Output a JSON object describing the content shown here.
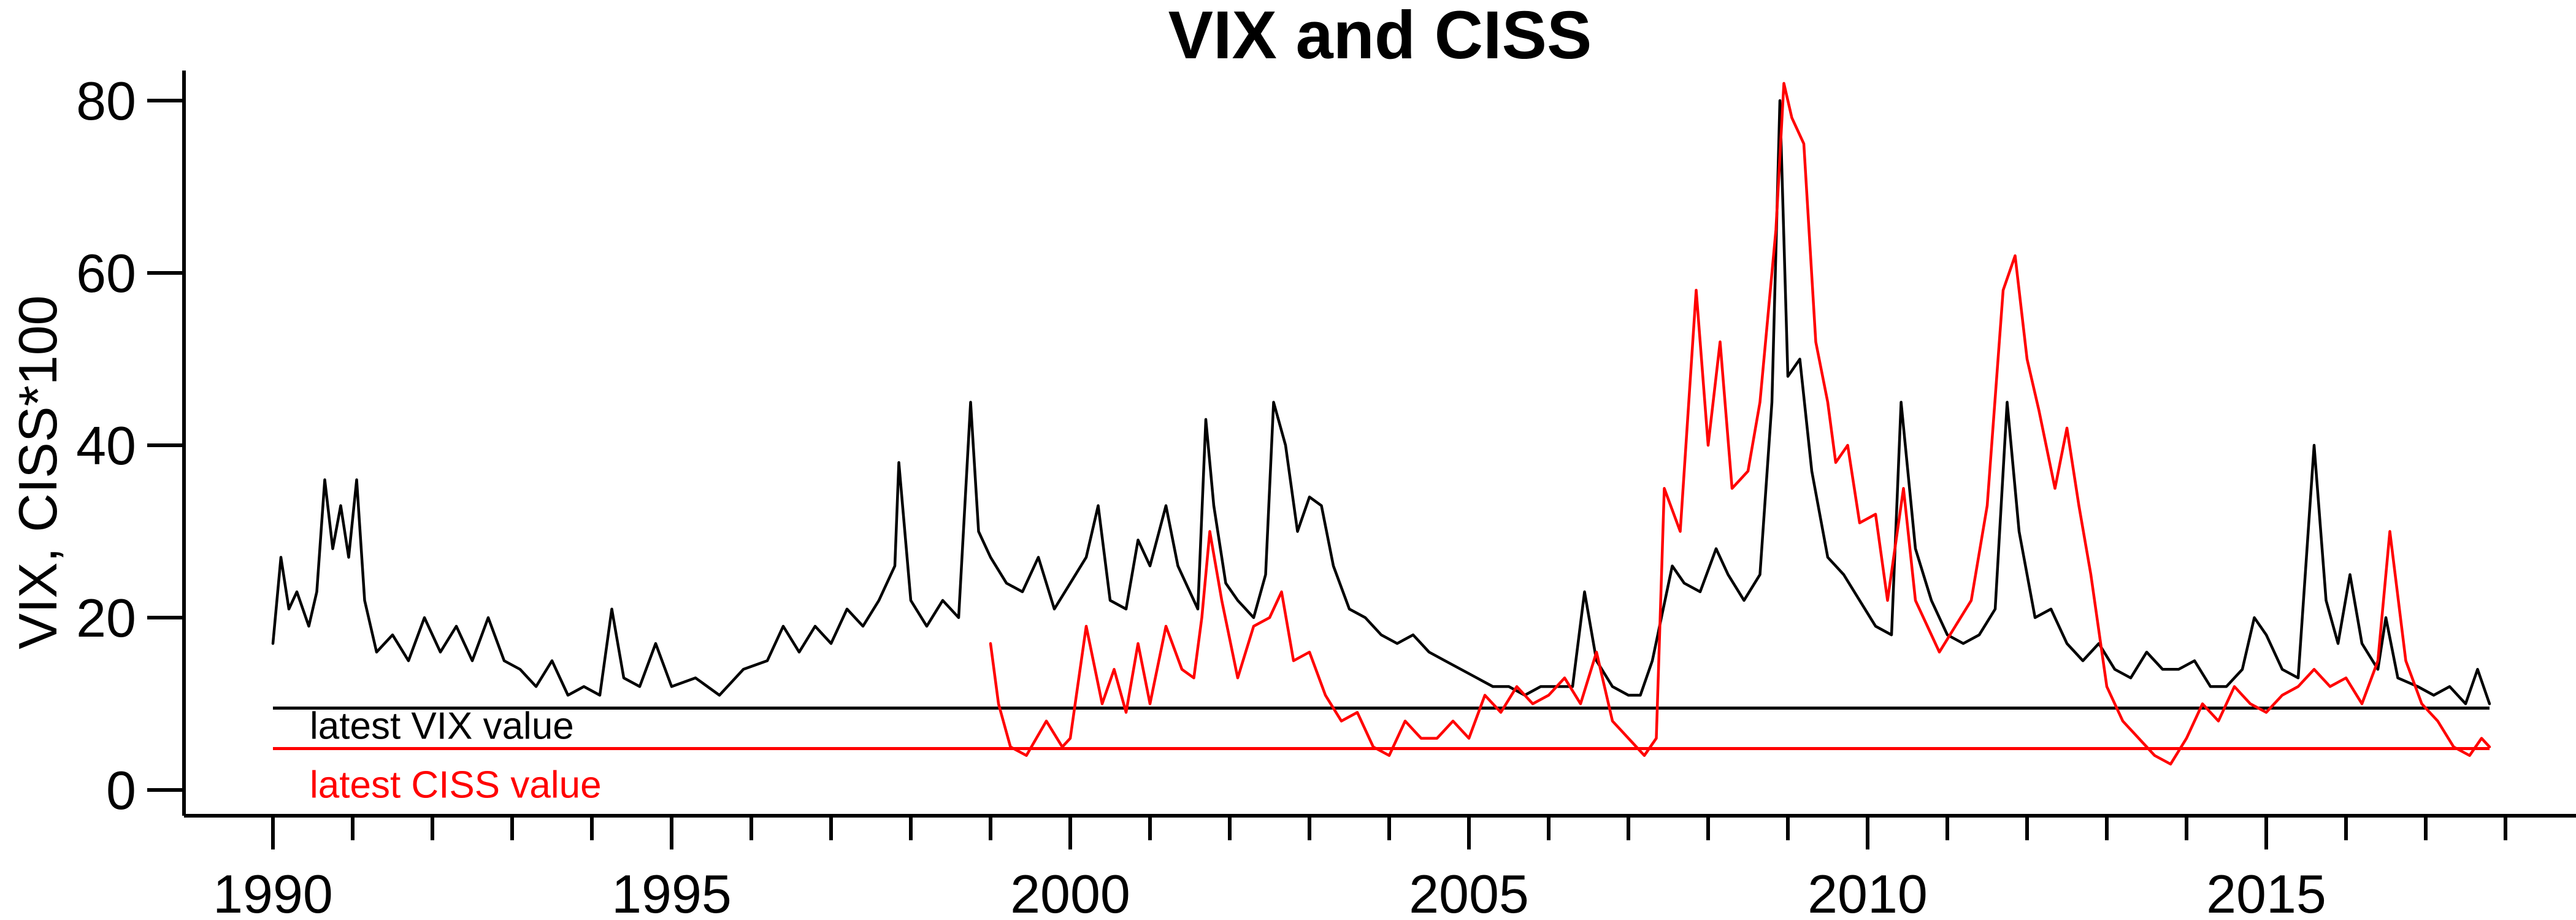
{
  "chart_data": {
    "type": "line",
    "title": "VIX and CISS",
    "xlabel": "",
    "ylabel": "VIX, CISS*100",
    "xlim": [
      1990,
      2019.5
    ],
    "ylim": [
      0,
      83
    ],
    "x_ticks": [
      1990,
      1995,
      2000,
      2005,
      2010,
      2015
    ],
    "x_minor_ticks": [
      1991,
      1992,
      1993,
      1994,
      1996,
      1997,
      1998,
      1999,
      2001,
      2002,
      2003,
      2004,
      2006,
      2007,
      2008,
      2009,
      2011,
      2012,
      2013,
      2014,
      2016,
      2017,
      2018,
      2019
    ],
    "y_ticks": [
      0,
      20,
      40,
      60,
      80
    ],
    "grid": false,
    "legend": "none",
    "series": [
      {
        "key": "vix",
        "color": "#000000",
        "points": [
          [
            1990.0,
            17
          ],
          [
            1990.1,
            27
          ],
          [
            1990.2,
            21
          ],
          [
            1990.3,
            23
          ],
          [
            1990.45,
            19
          ],
          [
            1990.55,
            23
          ],
          [
            1990.65,
            36
          ],
          [
            1990.75,
            28
          ],
          [
            1990.85,
            33
          ],
          [
            1990.95,
            27
          ],
          [
            1991.05,
            36
          ],
          [
            1991.15,
            22
          ],
          [
            1991.3,
            16
          ],
          [
            1991.5,
            18
          ],
          [
            1991.7,
            15
          ],
          [
            1991.9,
            20
          ],
          [
            1992.1,
            16
          ],
          [
            1992.3,
            19
          ],
          [
            1992.5,
            15
          ],
          [
            1992.7,
            20
          ],
          [
            1992.9,
            15
          ],
          [
            1993.1,
            14
          ],
          [
            1993.3,
            12
          ],
          [
            1993.5,
            15
          ],
          [
            1993.7,
            11
          ],
          [
            1993.9,
            12
          ],
          [
            1994.1,
            11
          ],
          [
            1994.25,
            21
          ],
          [
            1994.4,
            13
          ],
          [
            1994.6,
            12
          ],
          [
            1994.8,
            17
          ],
          [
            1995.0,
            12
          ],
          [
            1995.3,
            13
          ],
          [
            1995.6,
            11
          ],
          [
            1995.9,
            14
          ],
          [
            1996.2,
            15
          ],
          [
            1996.4,
            19
          ],
          [
            1996.6,
            16
          ],
          [
            1996.8,
            19
          ],
          [
            1997.0,
            17
          ],
          [
            1997.2,
            21
          ],
          [
            1997.4,
            19
          ],
          [
            1997.6,
            22
          ],
          [
            1997.8,
            26
          ],
          [
            1997.85,
            38
          ],
          [
            1998.0,
            22
          ],
          [
            1998.2,
            19
          ],
          [
            1998.4,
            22
          ],
          [
            1998.6,
            20
          ],
          [
            1998.75,
            45
          ],
          [
            1998.85,
            30
          ],
          [
            1999.0,
            27
          ],
          [
            1999.2,
            24
          ],
          [
            1999.4,
            23
          ],
          [
            1999.6,
            27
          ],
          [
            1999.8,
            21
          ],
          [
            2000.0,
            24
          ],
          [
            2000.2,
            27
          ],
          [
            2000.35,
            33
          ],
          [
            2000.5,
            22
          ],
          [
            2000.7,
            21
          ],
          [
            2000.85,
            29
          ],
          [
            2001.0,
            26
          ],
          [
            2001.2,
            33
          ],
          [
            2001.35,
            26
          ],
          [
            2001.5,
            23
          ],
          [
            2001.6,
            21
          ],
          [
            2001.7,
            43
          ],
          [
            2001.8,
            33
          ],
          [
            2001.95,
            24
          ],
          [
            2002.1,
            22
          ],
          [
            2002.3,
            20
          ],
          [
            2002.45,
            25
          ],
          [
            2002.55,
            45
          ],
          [
            2002.7,
            40
          ],
          [
            2002.85,
            30
          ],
          [
            2003.0,
            34
          ],
          [
            2003.15,
            33
          ],
          [
            2003.3,
            26
          ],
          [
            2003.5,
            21
          ],
          [
            2003.7,
            20
          ],
          [
            2003.9,
            18
          ],
          [
            2004.1,
            17
          ],
          [
            2004.3,
            18
          ],
          [
            2004.5,
            16
          ],
          [
            2004.7,
            15
          ],
          [
            2004.9,
            14
          ],
          [
            2005.1,
            13
          ],
          [
            2005.3,
            12
          ],
          [
            2005.5,
            12
          ],
          [
            2005.7,
            11
          ],
          [
            2005.9,
            12
          ],
          [
            2006.1,
            12
          ],
          [
            2006.3,
            12
          ],
          [
            2006.45,
            23
          ],
          [
            2006.6,
            15
          ],
          [
            2006.8,
            12
          ],
          [
            2007.0,
            11
          ],
          [
            2007.15,
            11
          ],
          [
            2007.3,
            15
          ],
          [
            2007.55,
            26
          ],
          [
            2007.7,
            24
          ],
          [
            2007.9,
            23
          ],
          [
            2008.1,
            28
          ],
          [
            2008.25,
            25
          ],
          [
            2008.45,
            22
          ],
          [
            2008.65,
            25
          ],
          [
            2008.8,
            45
          ],
          [
            2008.9,
            80
          ],
          [
            2009.0,
            48
          ],
          [
            2009.15,
            50
          ],
          [
            2009.3,
            37
          ],
          [
            2009.5,
            27
          ],
          [
            2009.7,
            25
          ],
          [
            2009.9,
            22
          ],
          [
            2010.1,
            19
          ],
          [
            2010.3,
            18
          ],
          [
            2010.42,
            45
          ],
          [
            2010.6,
            28
          ],
          [
            2010.8,
            22
          ],
          [
            2011.0,
            18
          ],
          [
            2011.2,
            17
          ],
          [
            2011.4,
            18
          ],
          [
            2011.6,
            21
          ],
          [
            2011.75,
            45
          ],
          [
            2011.9,
            30
          ],
          [
            2012.1,
            20
          ],
          [
            2012.3,
            21
          ],
          [
            2012.5,
            17
          ],
          [
            2012.7,
            15
          ],
          [
            2012.9,
            17
          ],
          [
            2013.1,
            14
          ],
          [
            2013.3,
            13
          ],
          [
            2013.5,
            16
          ],
          [
            2013.7,
            14
          ],
          [
            2013.9,
            14
          ],
          [
            2014.1,
            15
          ],
          [
            2014.3,
            12
          ],
          [
            2014.5,
            12
          ],
          [
            2014.7,
            14
          ],
          [
            2014.85,
            20
          ],
          [
            2015.0,
            18
          ],
          [
            2015.2,
            14
          ],
          [
            2015.4,
            13
          ],
          [
            2015.6,
            40
          ],
          [
            2015.75,
            22
          ],
          [
            2015.9,
            17
          ],
          [
            2016.05,
            25
          ],
          [
            2016.2,
            17
          ],
          [
            2016.4,
            14
          ],
          [
            2016.5,
            20
          ],
          [
            2016.65,
            13
          ],
          [
            2016.9,
            12
          ],
          [
            2017.1,
            11
          ],
          [
            2017.3,
            12
          ],
          [
            2017.5,
            10
          ],
          [
            2017.65,
            14
          ],
          [
            2017.8,
            10
          ]
        ]
      },
      {
        "key": "ciss",
        "color": "#ff0000",
        "points": [
          [
            1999.0,
            17
          ],
          [
            1999.1,
            10
          ],
          [
            1999.25,
            5
          ],
          [
            1999.45,
            4
          ],
          [
            1999.7,
            8
          ],
          [
            1999.9,
            5
          ],
          [
            2000.0,
            6
          ],
          [
            2000.2,
            19
          ],
          [
            2000.4,
            10
          ],
          [
            2000.55,
            14
          ],
          [
            2000.7,
            9
          ],
          [
            2000.85,
            17
          ],
          [
            2001.0,
            10
          ],
          [
            2001.2,
            19
          ],
          [
            2001.4,
            14
          ],
          [
            2001.55,
            13
          ],
          [
            2001.65,
            20
          ],
          [
            2001.75,
            30
          ],
          [
            2001.9,
            22
          ],
          [
            2002.1,
            13
          ],
          [
            2002.3,
            19
          ],
          [
            2002.5,
            20
          ],
          [
            2002.65,
            23
          ],
          [
            2002.8,
            15
          ],
          [
            2003.0,
            16
          ],
          [
            2003.2,
            11
          ],
          [
            2003.4,
            8
          ],
          [
            2003.6,
            9
          ],
          [
            2003.8,
            5
          ],
          [
            2004.0,
            4
          ],
          [
            2004.2,
            8
          ],
          [
            2004.4,
            6
          ],
          [
            2004.6,
            6
          ],
          [
            2004.8,
            8
          ],
          [
            2005.0,
            6
          ],
          [
            2005.2,
            11
          ],
          [
            2005.4,
            9
          ],
          [
            2005.6,
            12
          ],
          [
            2005.8,
            10
          ],
          [
            2006.0,
            11
          ],
          [
            2006.2,
            13
          ],
          [
            2006.4,
            10
          ],
          [
            2006.6,
            16
          ],
          [
            2006.8,
            8
          ],
          [
            2007.0,
            6
          ],
          [
            2007.2,
            4
          ],
          [
            2007.35,
            6
          ],
          [
            2007.45,
            35
          ],
          [
            2007.65,
            30
          ],
          [
            2007.85,
            58
          ],
          [
            2008.0,
            40
          ],
          [
            2008.15,
            52
          ],
          [
            2008.3,
            35
          ],
          [
            2008.5,
            37
          ],
          [
            2008.65,
            45
          ],
          [
            2008.85,
            65
          ],
          [
            2008.95,
            82
          ],
          [
            2009.05,
            78
          ],
          [
            2009.2,
            75
          ],
          [
            2009.35,
            52
          ],
          [
            2009.5,
            45
          ],
          [
            2009.6,
            38
          ],
          [
            2009.75,
            40
          ],
          [
            2009.9,
            31
          ],
          [
            2010.1,
            32
          ],
          [
            2010.25,
            22
          ],
          [
            2010.45,
            35
          ],
          [
            2010.6,
            22
          ],
          [
            2010.75,
            19
          ],
          [
            2010.9,
            16
          ],
          [
            2011.1,
            19
          ],
          [
            2011.3,
            22
          ],
          [
            2011.5,
            33
          ],
          [
            2011.7,
            58
          ],
          [
            2011.85,
            62
          ],
          [
            2012.0,
            50
          ],
          [
            2012.15,
            44
          ],
          [
            2012.35,
            35
          ],
          [
            2012.5,
            42
          ],
          [
            2012.65,
            33
          ],
          [
            2012.8,
            25
          ],
          [
            2013.0,
            12
          ],
          [
            2013.2,
            8
          ],
          [
            2013.4,
            6
          ],
          [
            2013.6,
            4
          ],
          [
            2013.8,
            3
          ],
          [
            2014.0,
            6
          ],
          [
            2014.2,
            10
          ],
          [
            2014.4,
            8
          ],
          [
            2014.6,
            12
          ],
          [
            2014.8,
            10
          ],
          [
            2015.0,
            9
          ],
          [
            2015.2,
            11
          ],
          [
            2015.4,
            12
          ],
          [
            2015.6,
            14
          ],
          [
            2015.8,
            12
          ],
          [
            2016.0,
            13
          ],
          [
            2016.2,
            10
          ],
          [
            2016.4,
            15
          ],
          [
            2016.55,
            30
          ],
          [
            2016.75,
            15
          ],
          [
            2016.95,
            10
          ],
          [
            2017.15,
            8
          ],
          [
            2017.35,
            5
          ],
          [
            2017.55,
            4
          ],
          [
            2017.7,
            6
          ],
          [
            2017.8,
            5
          ]
        ]
      }
    ],
    "reference_lines": [
      {
        "key": "vix_latest",
        "value": 9.5,
        "color": "#000000",
        "label": "latest VIX value",
        "x_start": 1990.0,
        "x_end": 2017.8
      },
      {
        "key": "ciss_latest",
        "value": 4.8,
        "color": "#ff0000",
        "label": "latest CISS value",
        "x_start": 1990.0,
        "x_end": 2017.8
      }
    ]
  }
}
